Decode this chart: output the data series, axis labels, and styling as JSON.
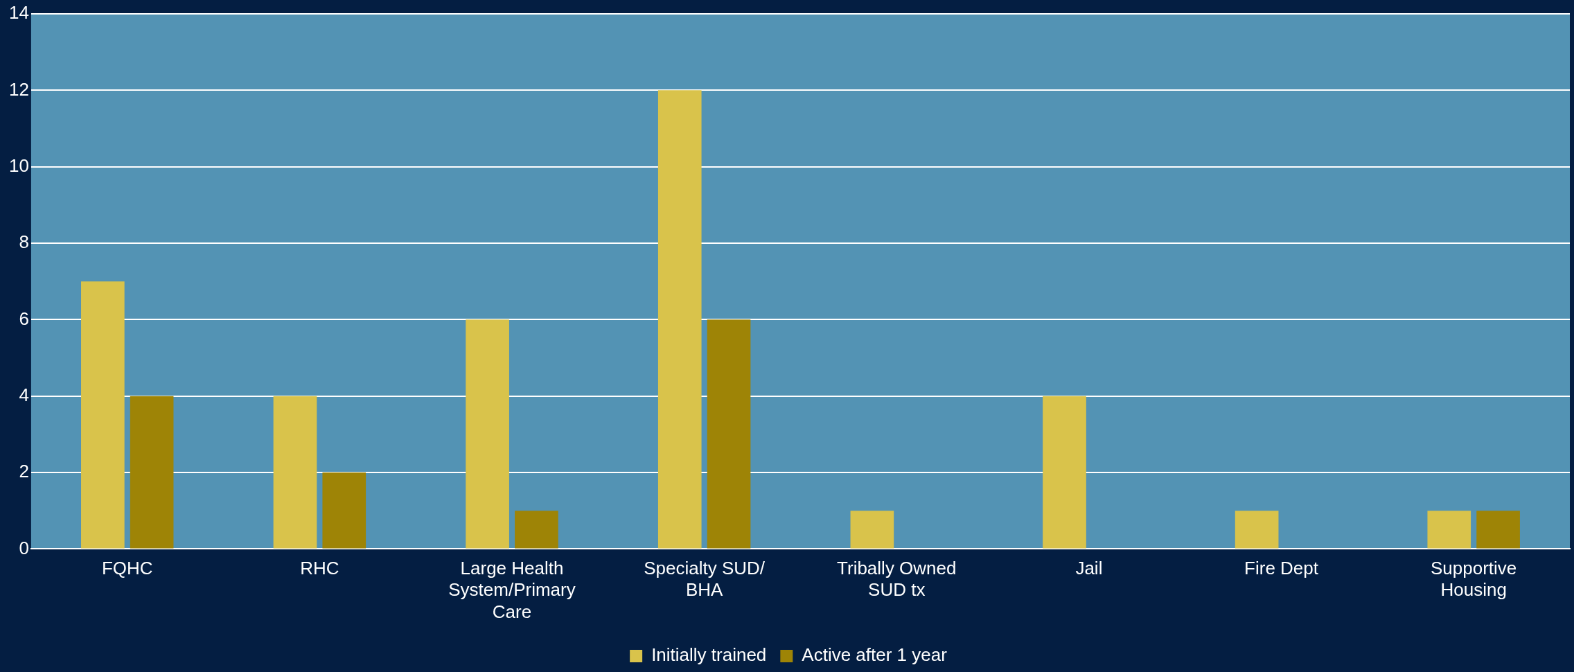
{
  "chart_data": {
    "type": "bar",
    "categories": [
      "FQHC",
      "RHC",
      "Large Health System/Primary Care",
      "Specialty SUD/BHA",
      "Tribally Owned SUD tx",
      "Jail",
      "Fire Dept",
      "Supportive Housing"
    ],
    "series": [
      {
        "name": "Initially trained",
        "color": "#d9c34b",
        "values": [
          7,
          4,
          6,
          12,
          1,
          4,
          1,
          1
        ]
      },
      {
        "name": "Active after 1 year",
        "color": "#9e8406",
        "values": [
          4,
          2,
          1,
          6,
          0,
          0,
          0,
          1
        ]
      }
    ],
    "ylim": [
      0,
      14
    ],
    "yticks": [
      0,
      2,
      4,
      6,
      8,
      10,
      12,
      14
    ],
    "grid": "y",
    "legend": "bottom"
  }
}
